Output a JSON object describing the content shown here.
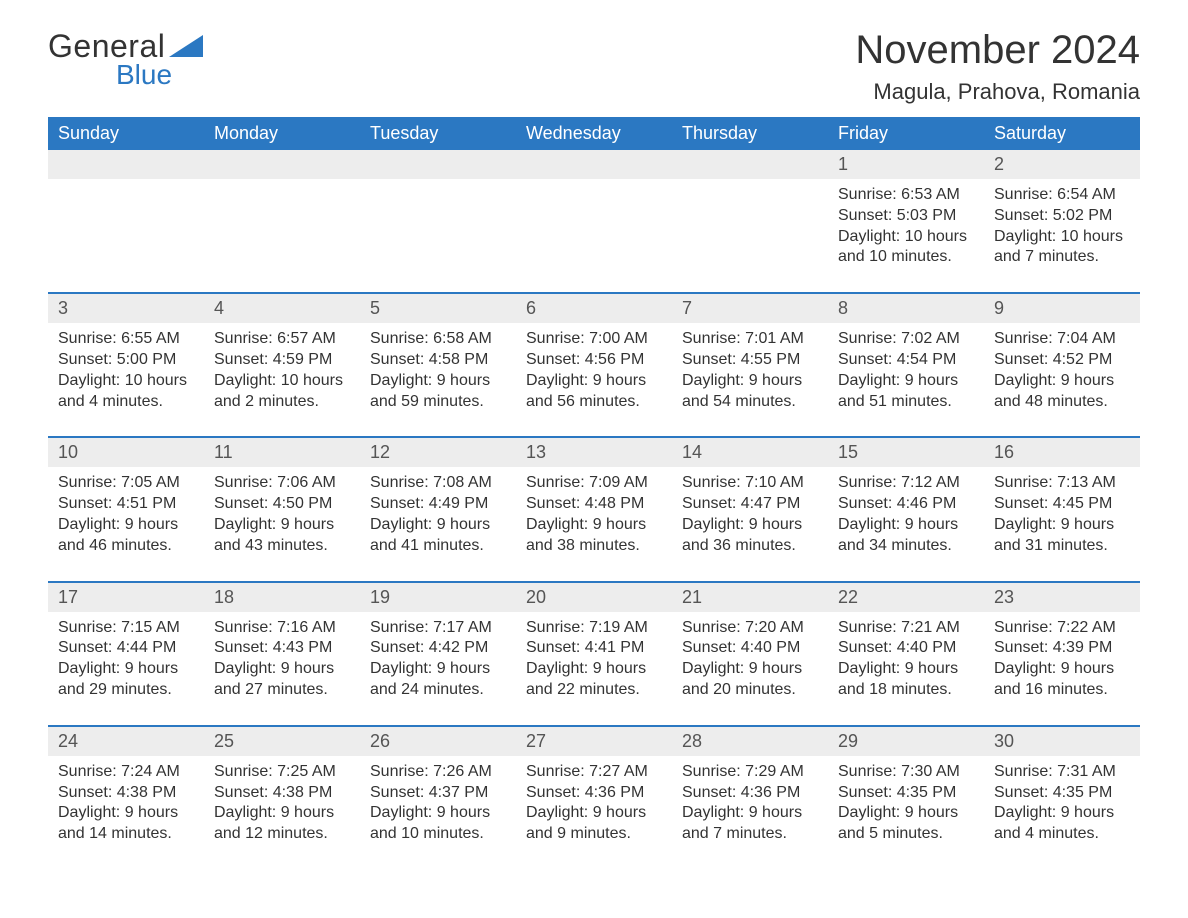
{
  "logo": {
    "text_general": "General",
    "text_blue": "Blue",
    "accent_color": "#2b78c2"
  },
  "title": "November 2024",
  "location": "Magula, Prahova, Romania",
  "colors": {
    "header_bg": "#2b78c2",
    "header_text": "#ffffff",
    "daynum_bg": "#ededed",
    "daynum_text": "#555555",
    "body_text": "#333333",
    "rule": "#2b78c2"
  },
  "fonts": {
    "title_size": 40,
    "location_size": 22,
    "dow_size": 18,
    "daynum_size": 18,
    "body_size": 16
  },
  "days_of_week": [
    "Sunday",
    "Monday",
    "Tuesday",
    "Wednesday",
    "Thursday",
    "Friday",
    "Saturday"
  ],
  "weeks": [
    [
      null,
      null,
      null,
      null,
      null,
      {
        "n": "1",
        "sr": "6:53 AM",
        "ss": "5:03 PM",
        "dl": "10 hours and 10 minutes."
      },
      {
        "n": "2",
        "sr": "6:54 AM",
        "ss": "5:02 PM",
        "dl": "10 hours and 7 minutes."
      }
    ],
    [
      {
        "n": "3",
        "sr": "6:55 AM",
        "ss": "5:00 PM",
        "dl": "10 hours and 4 minutes."
      },
      {
        "n": "4",
        "sr": "6:57 AM",
        "ss": "4:59 PM",
        "dl": "10 hours and 2 minutes."
      },
      {
        "n": "5",
        "sr": "6:58 AM",
        "ss": "4:58 PM",
        "dl": "9 hours and 59 minutes."
      },
      {
        "n": "6",
        "sr": "7:00 AM",
        "ss": "4:56 PM",
        "dl": "9 hours and 56 minutes."
      },
      {
        "n": "7",
        "sr": "7:01 AM",
        "ss": "4:55 PM",
        "dl": "9 hours and 54 minutes."
      },
      {
        "n": "8",
        "sr": "7:02 AM",
        "ss": "4:54 PM",
        "dl": "9 hours and 51 minutes."
      },
      {
        "n": "9",
        "sr": "7:04 AM",
        "ss": "4:52 PM",
        "dl": "9 hours and 48 minutes."
      }
    ],
    [
      {
        "n": "10",
        "sr": "7:05 AM",
        "ss": "4:51 PM",
        "dl": "9 hours and 46 minutes."
      },
      {
        "n": "11",
        "sr": "7:06 AM",
        "ss": "4:50 PM",
        "dl": "9 hours and 43 minutes."
      },
      {
        "n": "12",
        "sr": "7:08 AM",
        "ss": "4:49 PM",
        "dl": "9 hours and 41 minutes."
      },
      {
        "n": "13",
        "sr": "7:09 AM",
        "ss": "4:48 PM",
        "dl": "9 hours and 38 minutes."
      },
      {
        "n": "14",
        "sr": "7:10 AM",
        "ss": "4:47 PM",
        "dl": "9 hours and 36 minutes."
      },
      {
        "n": "15",
        "sr": "7:12 AM",
        "ss": "4:46 PM",
        "dl": "9 hours and 34 minutes."
      },
      {
        "n": "16",
        "sr": "7:13 AM",
        "ss": "4:45 PM",
        "dl": "9 hours and 31 minutes."
      }
    ],
    [
      {
        "n": "17",
        "sr": "7:15 AM",
        "ss": "4:44 PM",
        "dl": "9 hours and 29 minutes."
      },
      {
        "n": "18",
        "sr": "7:16 AM",
        "ss": "4:43 PM",
        "dl": "9 hours and 27 minutes."
      },
      {
        "n": "19",
        "sr": "7:17 AM",
        "ss": "4:42 PM",
        "dl": "9 hours and 24 minutes."
      },
      {
        "n": "20",
        "sr": "7:19 AM",
        "ss": "4:41 PM",
        "dl": "9 hours and 22 minutes."
      },
      {
        "n": "21",
        "sr": "7:20 AM",
        "ss": "4:40 PM",
        "dl": "9 hours and 20 minutes."
      },
      {
        "n": "22",
        "sr": "7:21 AM",
        "ss": "4:40 PM",
        "dl": "9 hours and 18 minutes."
      },
      {
        "n": "23",
        "sr": "7:22 AM",
        "ss": "4:39 PM",
        "dl": "9 hours and 16 minutes."
      }
    ],
    [
      {
        "n": "24",
        "sr": "7:24 AM",
        "ss": "4:38 PM",
        "dl": "9 hours and 14 minutes."
      },
      {
        "n": "25",
        "sr": "7:25 AM",
        "ss": "4:38 PM",
        "dl": "9 hours and 12 minutes."
      },
      {
        "n": "26",
        "sr": "7:26 AM",
        "ss": "4:37 PM",
        "dl": "9 hours and 10 minutes."
      },
      {
        "n": "27",
        "sr": "7:27 AM",
        "ss": "4:36 PM",
        "dl": "9 hours and 9 minutes."
      },
      {
        "n": "28",
        "sr": "7:29 AM",
        "ss": "4:36 PM",
        "dl": "9 hours and 7 minutes."
      },
      {
        "n": "29",
        "sr": "7:30 AM",
        "ss": "4:35 PM",
        "dl": "9 hours and 5 minutes."
      },
      {
        "n": "30",
        "sr": "7:31 AM",
        "ss": "4:35 PM",
        "dl": "9 hours and 4 minutes."
      }
    ]
  ],
  "labels": {
    "sunrise": "Sunrise: ",
    "sunset": "Sunset: ",
    "daylight": "Daylight: "
  }
}
